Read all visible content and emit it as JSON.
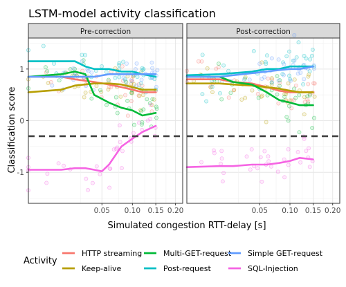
{
  "chart_data": {
    "type": "scatter",
    "title": "LSTM-model activity classification",
    "xlabel": "Simulated congestion RTT-delay [s]",
    "ylabel": "Classification score",
    "x_scale": "sqrt",
    "xlim": [
      0,
      0.22
    ],
    "ylim": [
      -1.6,
      1.6
    ],
    "x_ticks": [
      0.05,
      0.1,
      0.15,
      0.2
    ],
    "x_tick_labels": [
      "0.05",
      "0.10",
      "0.15",
      "0.20"
    ],
    "y_ticks": [
      -1,
      0,
      1
    ],
    "y_tick_labels": [
      "-1",
      "0",
      "1"
    ],
    "threshold_line": -0.3,
    "grid": true,
    "legend_title": "Activity",
    "legend_position": "bottom",
    "point_spread": 0.2,
    "series": [
      {
        "name": "HTTP streaming",
        "color": "#F8766D"
      },
      {
        "name": "Keep-alive",
        "color": "#B79F00"
      },
      {
        "name": "Multi-GET-request",
        "color": "#00BA38"
      },
      {
        "name": "Post-request",
        "color": "#00BFC4"
      },
      {
        "name": "Simple GET-request",
        "color": "#619CFF"
      },
      {
        "name": "SQL-Injection",
        "color": "#F564E3"
      }
    ],
    "facets": [
      {
        "label": "Pre-correction",
        "trends": [
          {
            "series": "HTTP streaming",
            "x": [
              0.0,
              0.01,
              0.02,
              0.04,
              0.06,
              0.08,
              0.1,
              0.12,
              0.15
            ],
            "y": [
              0.85,
              0.85,
              0.8,
              0.75,
              0.7,
              0.65,
              0.6,
              0.55,
              0.55
            ]
          },
          {
            "series": "Keep-alive",
            "x": [
              0.0,
              0.01,
              0.02,
              0.04,
              0.06,
              0.08,
              0.1,
              0.12,
              0.15
            ],
            "y": [
              0.55,
              0.6,
              0.68,
              0.72,
              0.72,
              0.7,
              0.65,
              0.6,
              0.6
            ]
          },
          {
            "series": "Multi-GET-request",
            "x": [
              0.0,
              0.01,
              0.02,
              0.03,
              0.04,
              0.06,
              0.08,
              0.1,
              0.12,
              0.15
            ],
            "y": [
              0.85,
              0.9,
              0.95,
              0.9,
              0.5,
              0.35,
              0.25,
              0.2,
              0.1,
              0.15
            ]
          },
          {
            "series": "Post-request",
            "x": [
              0.0,
              0.01,
              0.02,
              0.03,
              0.04,
              0.06,
              0.08,
              0.1,
              0.12,
              0.15
            ],
            "y": [
              1.15,
              1.15,
              1.15,
              1.05,
              1.0,
              1.0,
              0.95,
              0.95,
              0.9,
              0.85
            ]
          },
          {
            "series": "Simple GET-request",
            "x": [
              0.0,
              0.01,
              0.02,
              0.04,
              0.06,
              0.08,
              0.1,
              0.12,
              0.15
            ],
            "y": [
              0.85,
              0.85,
              0.85,
              0.85,
              0.9,
              0.9,
              0.9,
              0.9,
              0.9
            ]
          },
          {
            "series": "SQL-Injection",
            "x": [
              0.0,
              0.01,
              0.02,
              0.03,
              0.04,
              0.05,
              0.06,
              0.08,
              0.1,
              0.12,
              0.15
            ],
            "y": [
              -0.95,
              -0.95,
              -0.92,
              -0.92,
              -0.95,
              -0.98,
              -0.85,
              -0.5,
              -0.35,
              -0.22,
              -0.1
            ]
          }
        ]
      },
      {
        "label": "Post-correction",
        "trends": [
          {
            "series": "HTTP streaming",
            "x": [
              0.0,
              0.01,
              0.02,
              0.04,
              0.06,
              0.08,
              0.1,
              0.12,
              0.15
            ],
            "y": [
              0.8,
              0.8,
              0.75,
              0.72,
              0.65,
              0.58,
              0.55,
              0.55,
              0.55
            ]
          },
          {
            "series": "Keep-alive",
            "x": [
              0.0,
              0.01,
              0.02,
              0.04,
              0.06,
              0.08,
              0.1,
              0.12,
              0.15
            ],
            "y": [
              0.72,
              0.72,
              0.7,
              0.68,
              0.65,
              0.62,
              0.58,
              0.55,
              0.55
            ]
          },
          {
            "series": "Multi-GET-request",
            "x": [
              0.0,
              0.01,
              0.02,
              0.04,
              0.06,
              0.08,
              0.1,
              0.12,
              0.15
            ],
            "y": [
              0.85,
              0.85,
              0.75,
              0.7,
              0.55,
              0.4,
              0.35,
              0.3,
              0.3
            ]
          },
          {
            "series": "Post-request",
            "x": [
              0.0,
              0.01,
              0.02,
              0.04,
              0.06,
              0.08,
              0.1,
              0.12,
              0.15
            ],
            "y": [
              0.88,
              0.9,
              0.92,
              0.95,
              1.0,
              1.0,
              1.05,
              1.05,
              1.05
            ]
          },
          {
            "series": "Simple GET-request",
            "x": [
              0.0,
              0.01,
              0.02,
              0.04,
              0.06,
              0.08,
              0.1,
              0.12,
              0.15
            ],
            "y": [
              0.85,
              0.85,
              0.88,
              0.92,
              0.95,
              0.98,
              1.0,
              1.0,
              1.05
            ]
          },
          {
            "series": "SQL-Injection",
            "x": [
              0.0,
              0.01,
              0.02,
              0.04,
              0.06,
              0.08,
              0.1,
              0.12,
              0.15
            ],
            "y": [
              -0.9,
              -0.88,
              -0.88,
              -0.85,
              -0.85,
              -0.82,
              -0.78,
              -0.72,
              -0.75
            ]
          }
        ]
      }
    ]
  }
}
